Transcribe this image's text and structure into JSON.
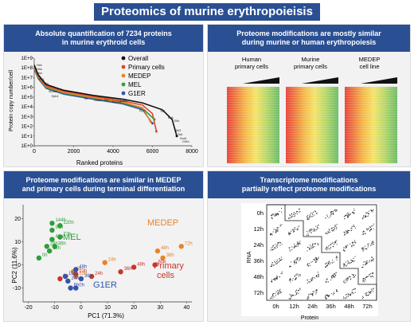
{
  "main_title": "Proteomics of murine erythropoieisis",
  "panels": {
    "p1": {
      "line1": "Absolute quantification of 7234 proteins",
      "line2": "in murine erythroid cells"
    },
    "p2": {
      "line1": "Proteome modifications are mostly similar",
      "line2": "during murine or human erythropoiesis"
    },
    "p3": {
      "line1": "Proteome modifications are similar in MEDEP",
      "line2": "and primary cells during terminal differentiation"
    },
    "p4": {
      "line1": "Transcriptome modifications",
      "line2": "partially reflect proteome modifications"
    }
  },
  "chart1": {
    "ylabel": "Protein copy number/cell",
    "xlabel": "Ranked proteins",
    "yticks": [
      "1E+9",
      "1E+8",
      "1E+7",
      "1E+6",
      "1E+5",
      "1E+4",
      "1E+3",
      "1E+2",
      "1E+1",
      "1E+0"
    ],
    "xticks": [
      "0",
      "2000",
      "4000",
      "6000",
      "8000"
    ],
    "legend": [
      {
        "label": "Overall",
        "color": "#111111"
      },
      {
        "label": "Primary cells",
        "color": "#e0452a"
      },
      {
        "label": "MEDEP",
        "color": "#e8842a"
      },
      {
        "label": "MEL",
        "color": "#2e9e3a"
      },
      {
        "label": "G1ER",
        "color": "#3354a8"
      }
    ],
    "protein_labels": [
      "Hbb",
      "Hba",
      "Hba",
      "Prt1",
      "Tfrc",
      "Slc4a1",
      "Epb4",
      "Kit",
      "Gata1",
      "Klf1",
      "Bcl11a",
      "Stat5b",
      "Epor",
      "Tfr2",
      "Myb",
      "Elfe",
      "Akt3",
      "Tal1",
      "Sox6",
      "Gfi1b"
    ]
  },
  "heatmaps": {
    "labels": [
      {
        "l1": "Human",
        "l2": "primary cells"
      },
      {
        "l1": "Murine",
        "l2": "primary cells"
      },
      {
        "l1": "MEDEP",
        "l2": "cell line"
      }
    ]
  },
  "pca": {
    "xlabel": "PC1 (71.3%)",
    "ylabel": "PC2 (11.6%)",
    "xticks": [
      "-20",
      "-10",
      "0",
      "10",
      "20",
      "30",
      "40"
    ],
    "yticks": [
      "20",
      "10",
      "0",
      "-10"
    ],
    "group_labels": {
      "mel": "MEL",
      "medep": "MEDEP",
      "primary": "Primary\ncells",
      "primary1": "Primary",
      "primary2": "cells",
      "g1er": "G1ER"
    },
    "colors": {
      "mel": "#2e9e3a",
      "medep": "#e8842a",
      "primary": "#c8352a",
      "g1er": "#3354a8"
    }
  },
  "scatter_matrix": {
    "row_labels": [
      "0h",
      "12h",
      "24h",
      "36h",
      "48h",
      "72h"
    ],
    "col_labels": [
      "0h",
      "12h",
      "24h",
      "36h",
      "48h",
      "72h"
    ],
    "ylabel": "RNA",
    "xlabel": "Protein"
  },
  "chart_data": [
    {
      "type": "line",
      "title": "Absolute quantification of 7234 proteins in murine erythroid cells",
      "xlabel": "Ranked proteins",
      "ylabel": "Protein copy number/cell",
      "yscale": "log",
      "xlim": [
        0,
        8000
      ],
      "ylim": [
        1,
        1000000000
      ],
      "series": [
        {
          "name": "Overall",
          "x": [
            0,
            200,
            600,
            1500,
            3000,
            4500,
            5500,
            6500,
            7000,
            7234
          ],
          "y": [
            200000000,
            20000000,
            2000000,
            500000,
            150000,
            60000,
            25000,
            5000,
            500,
            10
          ]
        },
        {
          "name": "Primary cells",
          "x": [
            0,
            200,
            600,
            1500,
            3000,
            4500,
            5500,
            6000,
            6200
          ],
          "y": [
            150000000,
            15000000,
            1500000,
            400000,
            120000,
            40000,
            15000,
            2000,
            30
          ]
        },
        {
          "name": "MEDEP",
          "x": [
            0,
            200,
            600,
            1500,
            3000,
            4500,
            5500,
            5900
          ],
          "y": [
            120000000,
            12000000,
            1200000,
            300000,
            90000,
            30000,
            8000,
            300
          ]
        },
        {
          "name": "MEL",
          "x": [
            0,
            200,
            600,
            1500,
            3000,
            4500,
            5500,
            6100
          ],
          "y": [
            100000000,
            10000000,
            1000000,
            250000,
            80000,
            25000,
            7000,
            500
          ]
        },
        {
          "name": "G1ER",
          "x": [
            0,
            200,
            600,
            1500,
            3000,
            4500,
            5500,
            6000
          ],
          "y": [
            80000000,
            8000000,
            800000,
            200000,
            60000,
            20000,
            5000,
            200
          ]
        }
      ]
    },
    {
      "type": "scatter",
      "title": "Proteome modifications are similar in MEDEP and primary cells during terminal differentiation",
      "xlabel": "PC1 (71.3%)",
      "ylabel": "PC2 (11.6%)",
      "xlim": [
        -22,
        42
      ],
      "ylim": [
        -16,
        26
      ],
      "series": [
        {
          "name": "MEL",
          "group": "mel",
          "points": [
            {
              "label": "144h",
              "x": -11,
              "y": 18
            },
            {
              "label": "120h",
              "x": -8,
              "y": 17
            },
            {
              "label": "96h",
              "x": -11,
              "y": 15
            },
            {
              "label": "72h",
              "x": -8,
              "y": 12
            },
            {
              "label": "48h",
              "x": -11,
              "y": 11
            },
            {
              "label": "36h",
              "x": -10,
              "y": 8
            },
            {
              "label": "24h",
              "x": -13,
              "y": 8
            },
            {
              "label": "12h",
              "x": -12,
              "y": 6
            },
            {
              "label": "0h",
              "x": -16,
              "y": 3
            }
          ]
        },
        {
          "name": "MEDEP",
          "group": "medep",
          "points": [
            {
              "label": "72h",
              "x": 38,
              "y": 8
            },
            {
              "label": "48h",
              "x": 29,
              "y": 6
            },
            {
              "label": "36h",
              "x": 31,
              "y": 3
            },
            {
              "label": "24h",
              "x": 9,
              "y": 1
            },
            {
              "label": "0h",
              "x": -3,
              "y": -3
            },
            {
              "label": "12h",
              "x": -2,
              "y": -5
            }
          ]
        },
        {
          "name": "Primary cells",
          "group": "primary",
          "points": [
            {
              "label": "60h",
              "x": 28,
              "y": 0
            },
            {
              "label": "48h",
              "x": 20,
              "y": -1
            },
            {
              "label": "36h",
              "x": 15,
              "y": -3
            },
            {
              "label": "24h",
              "x": 4,
              "y": -5
            },
            {
              "label": "12h",
              "x": -2,
              "y": -4
            },
            {
              "label": "0h",
              "x": -8,
              "y": -6
            }
          ]
        },
        {
          "name": "G1ER",
          "group": "g1er",
          "points": [
            {
              "label": "48h",
              "x": -2,
              "y": -2
            },
            {
              "label": "36h",
              "x": 0,
              "y": -6
            },
            {
              "label": "24h",
              "x": -5,
              "y": -7
            },
            {
              "label": "12h",
              "x": -6,
              "y": -5
            },
            {
              "label": "0h",
              "x": -2,
              "y": -10
            },
            {
              "label": "6h",
              "x": -4,
              "y": -10
            }
          ]
        }
      ]
    }
  ]
}
